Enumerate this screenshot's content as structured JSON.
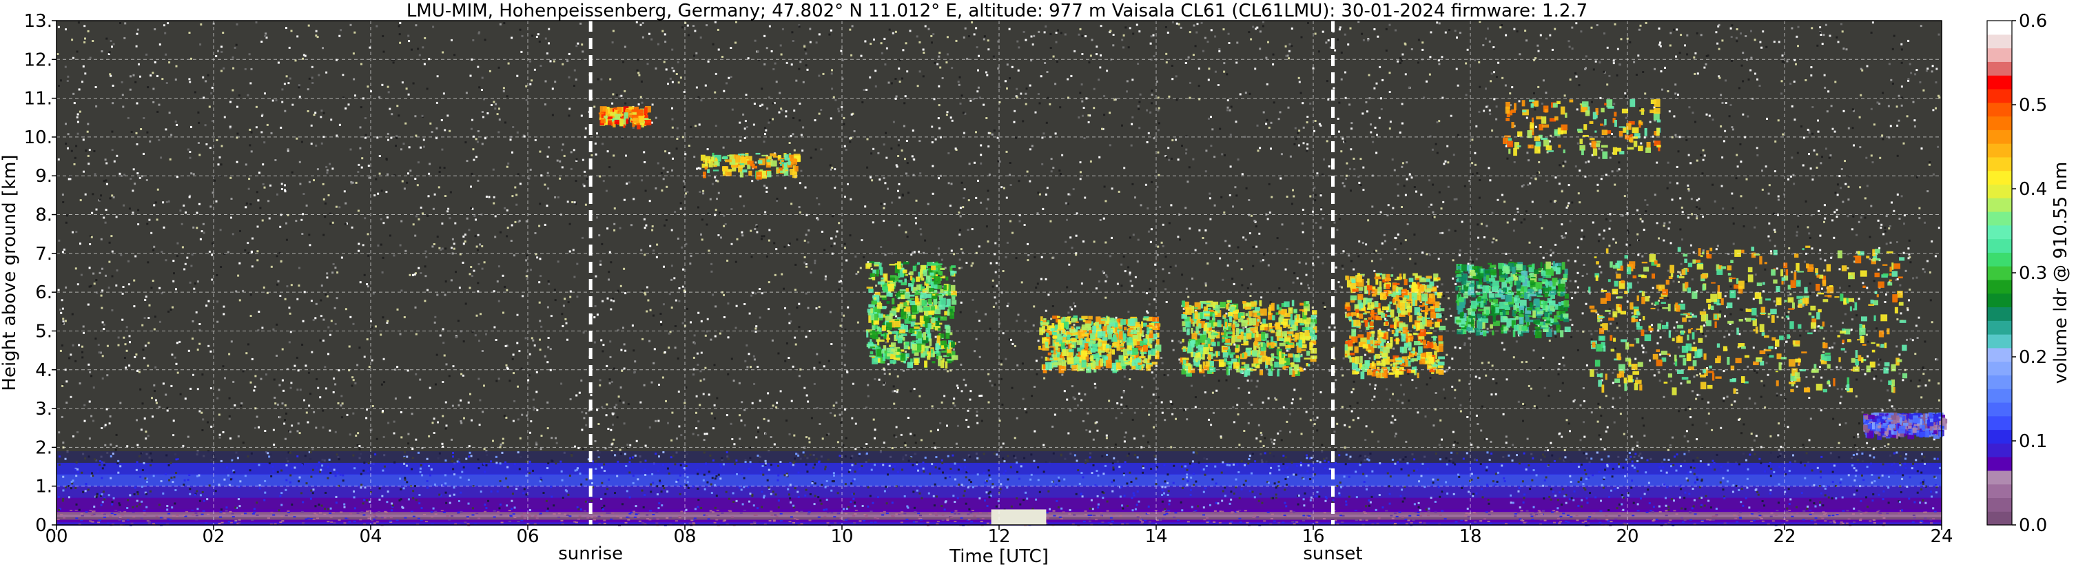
{
  "chart_data": {
    "type": "heatmap",
    "title": "LMU-MIM, Hohenpeissenberg, Germany; 47.802° N 11.012° E, altitude: 977 m    Vaisala CL61 (CL61LMU): 30-01-2024    firmware: 1.2.7",
    "xlabel": "Time [UTC]",
    "ylabel": "Height above ground [km]",
    "xlim": [
      0,
      24
    ],
    "ylim": [
      0,
      13
    ],
    "x_ticks": [
      "00",
      "02",
      "04",
      "06",
      "08",
      "10",
      "12",
      "14",
      "16",
      "18",
      "20",
      "22",
      "24"
    ],
    "y_ticks": [
      "0.",
      "1.",
      "2.",
      "3.",
      "4.",
      "5.",
      "6.",
      "7.",
      "8.",
      "9.",
      "10.",
      "11.",
      "12.",
      "13."
    ],
    "grid": true,
    "markers": [
      {
        "label": "sunrise",
        "x": 6.8
      },
      {
        "label": "sunset",
        "x": 16.25
      }
    ],
    "colorbar": {
      "label": "volume ldr @ 910.55 nm",
      "range": [
        0.0,
        0.6
      ],
      "ticks": [
        "0.0",
        "0.1",
        "0.2",
        "0.3",
        "0.4",
        "0.5",
        "0.6"
      ],
      "colors": [
        "#7a4f7a",
        "#8c5c8c",
        "#9e6e9e",
        "#b08ab0",
        "#5a00b4",
        "#3c1ed2",
        "#2a2aeb",
        "#3a4fff",
        "#4a6aff",
        "#5a82ff",
        "#6f96ff",
        "#86a8ff",
        "#9cb6ff",
        "#56c8c8",
        "#2aa896",
        "#108a64",
        "#0a8c28",
        "#1aa01e",
        "#3cc83c",
        "#3cdc6e",
        "#4ce6a0",
        "#64f0b4",
        "#7cf08c",
        "#b4f064",
        "#e6f03c",
        "#fff028",
        "#ffd21e",
        "#ffb414",
        "#ff960a",
        "#ff7800",
        "#ff5a00",
        "#ff2d00",
        "#ff0000",
        "#e06a6a",
        "#f0b4b4",
        "#f0dcdc",
        "#ffffff"
      ]
    },
    "features": [
      {
        "kind": "boundary-layer",
        "x": [
          0,
          24
        ],
        "y": [
          0,
          0.4
        ],
        "ldr": 0.02
      },
      {
        "kind": "aerosol-layer",
        "x": [
          0,
          24
        ],
        "y": [
          0.4,
          1.9
        ],
        "ldr": 0.08
      },
      {
        "kind": "data-gap",
        "x": [
          11.9,
          12.6
        ],
        "y": [
          0,
          0.4
        ]
      },
      {
        "kind": "cloud",
        "x": [
          10.3,
          11.4
        ],
        "y": [
          4.2,
          6.8
        ],
        "ldr": 0.35
      },
      {
        "kind": "cloud",
        "x": [
          12.5,
          14.0
        ],
        "y": [
          4.1,
          5.4
        ],
        "ldr": 0.4
      },
      {
        "kind": "cloud",
        "x": [
          14.3,
          16.0
        ],
        "y": [
          4.0,
          5.8
        ],
        "ldr": 0.38
      },
      {
        "kind": "cloud",
        "x": [
          16.4,
          17.6
        ],
        "y": [
          3.9,
          6.5
        ],
        "ldr": 0.42
      },
      {
        "kind": "cloud",
        "x": [
          17.8,
          19.2
        ],
        "y": [
          5.0,
          6.8
        ],
        "ldr": 0.3
      },
      {
        "kind": "cloud",
        "x": [
          19.5,
          23.5
        ],
        "y": [
          3.5,
          7.2
        ],
        "ldr": 0.4
      },
      {
        "kind": "cirrus",
        "x": [
          6.9,
          7.5
        ],
        "y": [
          10.4,
          10.8
        ],
        "ldr": 0.45
      },
      {
        "kind": "cirrus",
        "x": [
          8.2,
          9.4
        ],
        "y": [
          9.1,
          9.6
        ],
        "ldr": 0.4
      },
      {
        "kind": "cirrus",
        "x": [
          18.4,
          20.4
        ],
        "y": [
          9.6,
          11.0
        ],
        "ldr": 0.42
      },
      {
        "kind": "low-layer",
        "x": [
          23.0,
          24.0
        ],
        "y": [
          2.4,
          2.9
        ],
        "ldr": 0.1
      }
    ]
  }
}
